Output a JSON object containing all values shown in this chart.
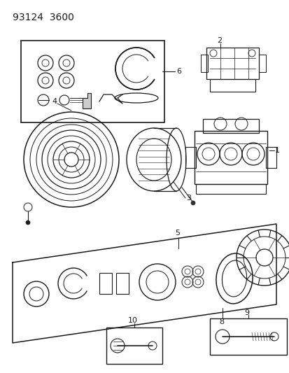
{
  "title": "93124  3600",
  "bg_color": "#ffffff",
  "line_color": "#1a1a1a",
  "figsize": [
    4.14,
    5.33
  ],
  "dpi": 100
}
